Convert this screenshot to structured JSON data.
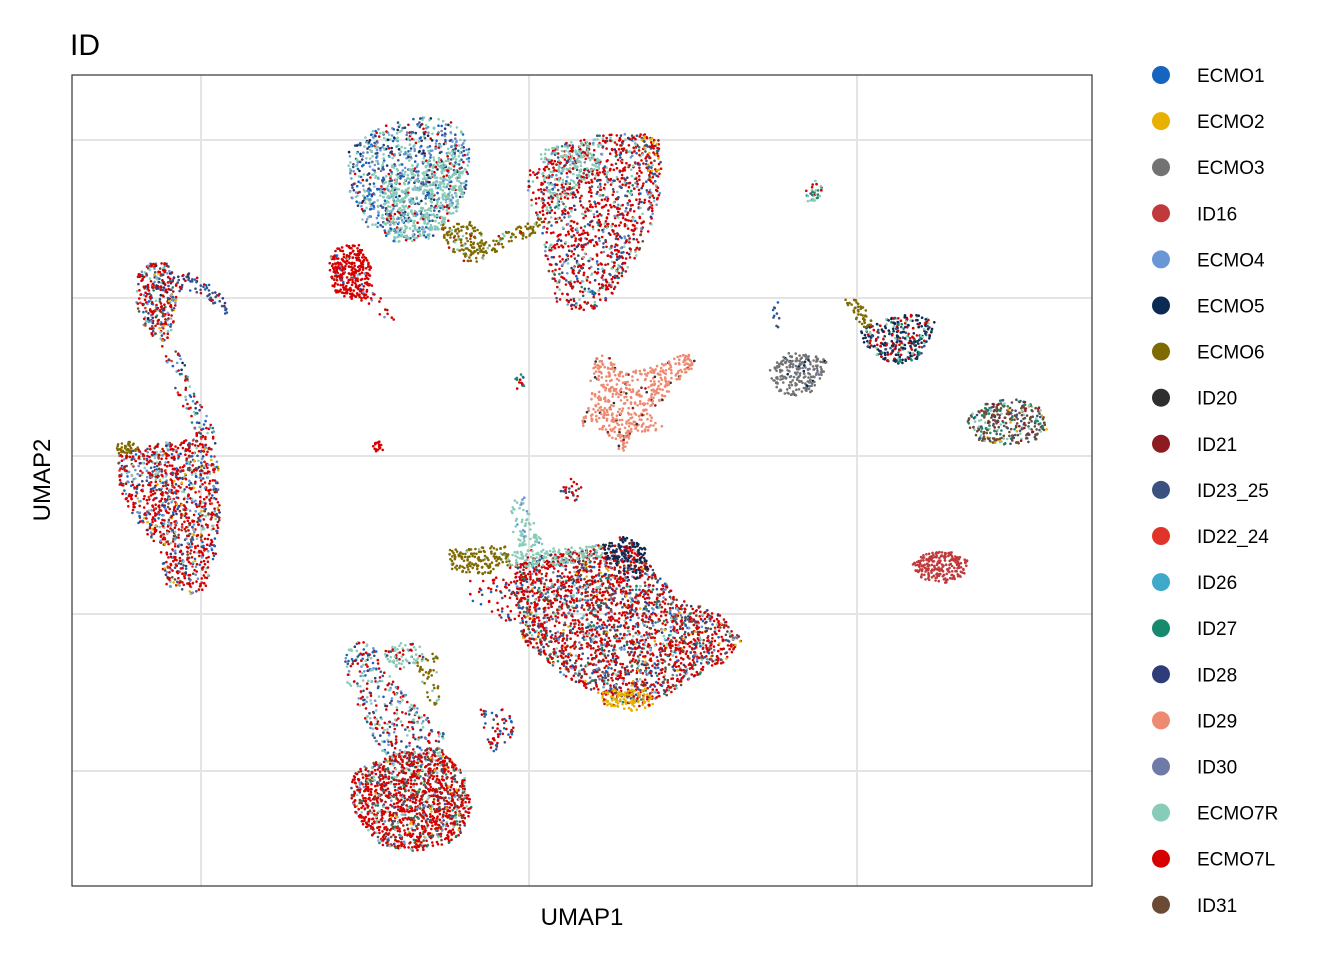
{
  "chart_data": {
    "type": "scatter",
    "title": "ID",
    "xlabel": "UMAP1",
    "ylabel": "UMAP2",
    "grid": true,
    "show_tick_labels": false,
    "legend_position": "right",
    "legend": [
      {
        "name": "ECMO1",
        "color": "#1565C0"
      },
      {
        "name": "ECMO2",
        "color": "#E8B100"
      },
      {
        "name": "ECMO3",
        "color": "#737373"
      },
      {
        "name": "ID16",
        "color": "#C0393B"
      },
      {
        "name": "ECMO4",
        "color": "#6A96D8"
      },
      {
        "name": "ECMO5",
        "color": "#0B2B55"
      },
      {
        "name": "ECMO6",
        "color": "#7F6A00"
      },
      {
        "name": "ID20",
        "color": "#2E2E2E"
      },
      {
        "name": "ID21",
        "color": "#8E1B20"
      },
      {
        "name": "ID23_25",
        "color": "#3B5280"
      },
      {
        "name": "ID22_24",
        "color": "#E0342A"
      },
      {
        "name": "ID26",
        "color": "#3FA9C9"
      },
      {
        "name": "ID27",
        "color": "#178A6E"
      },
      {
        "name": "ID28",
        "color": "#2E3C79"
      },
      {
        "name": "ID29",
        "color": "#EE8A72"
      },
      {
        "name": "ID30",
        "color": "#6F7BA6"
      },
      {
        "name": "ECMO7R",
        "color": "#87CBB8"
      },
      {
        "name": "ECMO7L",
        "color": "#D60000"
      },
      {
        "name": "ID31",
        "color": "#6B4B36"
      }
    ]
  }
}
